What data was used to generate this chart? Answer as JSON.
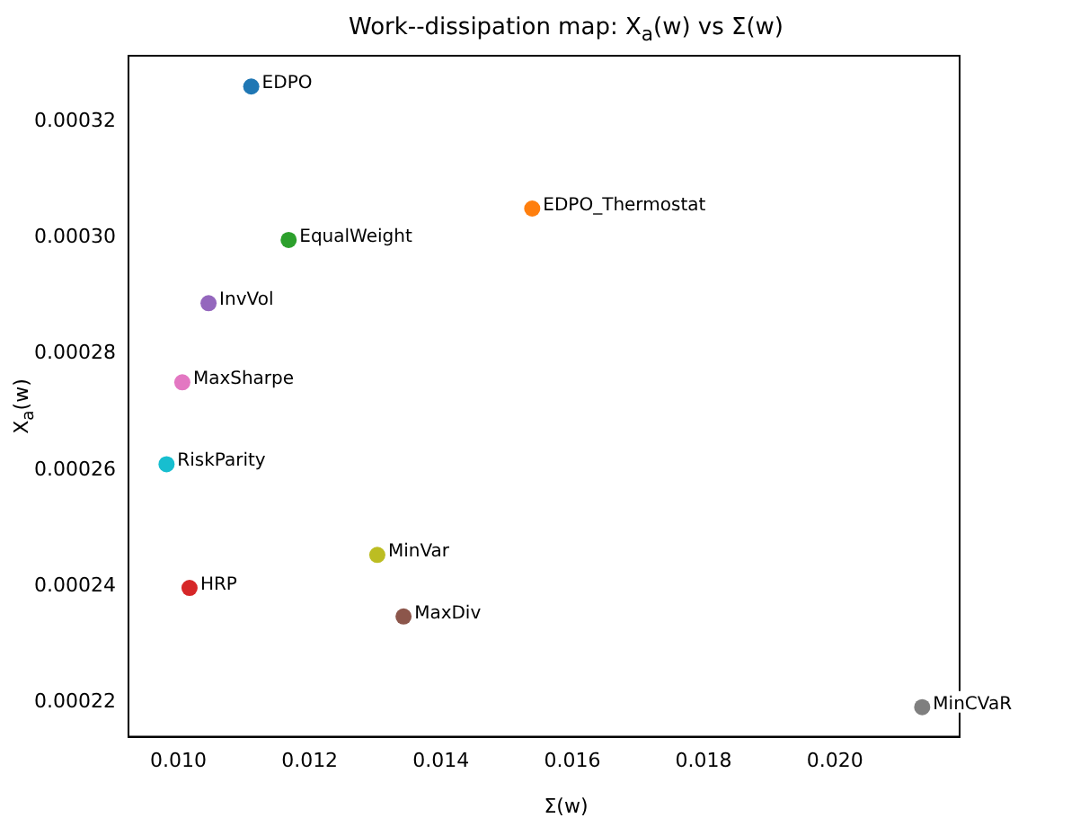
{
  "chart_data": {
    "type": "scatter",
    "title": "Work--dissipation map: X$_{a}$(w) vs Σ(w)",
    "xlabel": "Σ(w)",
    "ylabel": "X$_{a}$(w)",
    "marker": "circle",
    "legend": false,
    "grid": false,
    "xlim": [
      0.00924,
      0.0219
    ],
    "xticks": [
      {
        "value": 0.01,
        "label": "0.010"
      },
      {
        "value": 0.012,
        "label": "0.012"
      },
      {
        "value": 0.014,
        "label": "0.014"
      },
      {
        "value": 0.016,
        "label": "0.016"
      },
      {
        "value": 0.018,
        "label": "0.018"
      },
      {
        "value": 0.02,
        "label": "0.020"
      }
    ],
    "ylim": [
      0.0002141,
      0.0003313
    ],
    "yticks": [
      {
        "value": 0.00022,
        "label": "0.00022"
      },
      {
        "value": 0.00024,
        "label": "0.00024"
      },
      {
        "value": 0.00026,
        "label": "0.00026"
      },
      {
        "value": 0.00028,
        "label": "0.00028"
      },
      {
        "value": 0.0003,
        "label": "0.00030"
      },
      {
        "value": 0.00032,
        "label": "0.00032"
      }
    ],
    "series": [
      {
        "name": "EDPO",
        "color": "#1f77b4",
        "x": [
          0.01111
        ],
        "values": [
          0.000326
        ]
      },
      {
        "name": "EDPO_Thermostat",
        "color": "#ff7f0e",
        "x": [
          0.01539
        ],
        "values": [
          0.000305
        ]
      },
      {
        "name": "EqualWeight",
        "color": "#2ca02c",
        "x": [
          0.01168
        ],
        "values": [
          0.0002996
        ]
      },
      {
        "name": "HRP",
        "color": "#d62728",
        "x": [
          0.01017
        ],
        "values": [
          0.0002397
        ]
      },
      {
        "name": "InvVol",
        "color": "#9467bd",
        "x": [
          0.01046
        ],
        "values": [
          0.0002887
        ]
      },
      {
        "name": "MaxDiv",
        "color": "#8c564b",
        "x": [
          0.01343
        ],
        "values": [
          0.0002348
        ]
      },
      {
        "name": "MaxSharpe",
        "color": "#e377c2",
        "x": [
          0.01006
        ],
        "values": [
          0.0002751
        ]
      },
      {
        "name": "MinCVaR",
        "color": "#7f7f7f",
        "x": [
          0.02133
        ],
        "values": [
          0.0002192
        ]
      },
      {
        "name": "MinVar",
        "color": "#bcbd22",
        "x": [
          0.01303
        ],
        "values": [
          0.0002454
        ]
      },
      {
        "name": "RiskParity",
        "color": "#17becf",
        "x": [
          0.00982
        ],
        "values": [
          0.000261
        ]
      }
    ]
  }
}
